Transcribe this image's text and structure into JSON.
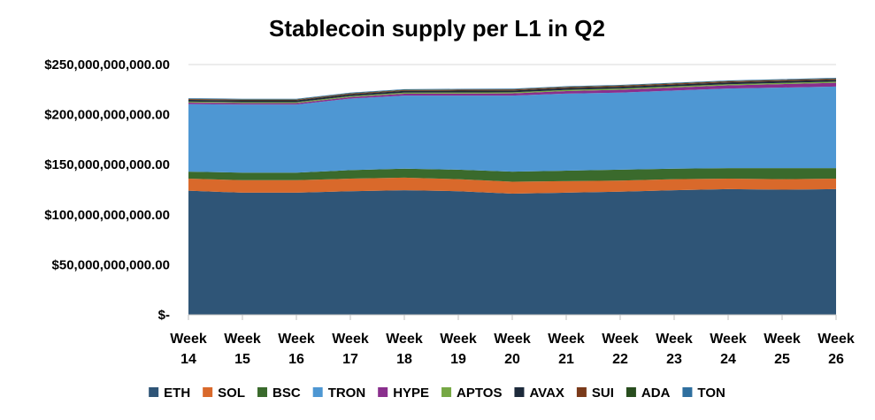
{
  "chart_data": {
    "type": "area",
    "stacked": true,
    "title": "Stablecoin supply per L1 in Q2",
    "xlabel": "",
    "ylabel": "",
    "ylim": [
      0,
      250000000000
    ],
    "y_ticks": [
      0,
      50000000000,
      100000000000,
      150000000000,
      200000000000,
      250000000000
    ],
    "y_tick_labels": [
      "$-",
      "$50,000,000,000.00",
      "$100,000,000,000.00",
      "$150,000,000,000.00",
      "$200,000,000,000.00",
      "$250,000,000,000.00"
    ],
    "categories": [
      [
        "Week",
        "14"
      ],
      [
        "Week",
        "15"
      ],
      [
        "Week",
        "16"
      ],
      [
        "Week",
        "17"
      ],
      [
        "Week",
        "18"
      ],
      [
        "Week",
        "19"
      ],
      [
        "Week",
        "20"
      ],
      [
        "Week",
        "21"
      ],
      [
        "Week",
        "22"
      ],
      [
        "Week",
        "23"
      ],
      [
        "Week",
        "24"
      ],
      [
        "Week",
        "25"
      ],
      [
        "Week",
        "26"
      ]
    ],
    "grid": "horizontal",
    "legend_position": "bottom",
    "series": [
      {
        "name": "ETH",
        "color": "#2f5577",
        "values": [
          124000000000,
          122000000000,
          122000000000,
          123500000000,
          124500000000,
          123500000000,
          121000000000,
          122000000000,
          123000000000,
          124500000000,
          125500000000,
          125000000000,
          125500000000
        ]
      },
      {
        "name": "SOL",
        "color": "#d9692b",
        "values": [
          12000000000,
          12500000000,
          12500000000,
          12500000000,
          12500000000,
          12000000000,
          12000000000,
          11500000000,
          11000000000,
          11000000000,
          10500000000,
          10500000000,
          10500000000
        ]
      },
      {
        "name": "BSC",
        "color": "#3a6a2c",
        "values": [
          7000000000,
          7500000000,
          7500000000,
          8500000000,
          9000000000,
          9500000000,
          10000000000,
          10500000000,
          11000000000,
          10500000000,
          10500000000,
          11000000000,
          10500000000
        ]
      },
      {
        "name": "TRON",
        "color": "#4e97d3",
        "values": [
          67500000000,
          68000000000,
          68000000000,
          71500000000,
          73000000000,
          74000000000,
          76000000000,
          77000000000,
          77000000000,
          78000000000,
          79500000000,
          80500000000,
          81500000000
        ]
      },
      {
        "name": "HYPE",
        "color": "#8a2f8d",
        "values": [
          1500000000,
          1500000000,
          1500000000,
          1500000000,
          1800000000,
          2000000000,
          2200000000,
          2500000000,
          2800000000,
          3000000000,
          3200000000,
          3500000000,
          3800000000
        ]
      },
      {
        "name": "APTOS",
        "color": "#76a844",
        "values": [
          1000000000,
          1000000000,
          1000000000,
          1000000000,
          1100000000,
          1100000000,
          1100000000,
          1200000000,
          1200000000,
          1200000000,
          1200000000,
          1200000000,
          1200000000
        ]
      },
      {
        "name": "AVAX",
        "color": "#1d2a3b",
        "values": [
          1700000000,
          1700000000,
          1700000000,
          1700000000,
          1800000000,
          1800000000,
          1800000000,
          1800000000,
          1800000000,
          1800000000,
          1800000000,
          1800000000,
          1800000000
        ]
      },
      {
        "name": "SUI",
        "color": "#7a3a1a",
        "values": [
          700000000,
          700000000,
          700000000,
          800000000,
          800000000,
          900000000,
          900000000,
          900000000,
          1000000000,
          1000000000,
          1000000000,
          1000000000,
          1000000000
        ]
      },
      {
        "name": "ADA",
        "color": "#284d1e",
        "values": [
          300000000,
          300000000,
          300000000,
          300000000,
          300000000,
          300000000,
          300000000,
          300000000,
          300000000,
          300000000,
          300000000,
          300000000,
          300000000
        ]
      },
      {
        "name": "TON",
        "color": "#2f6f9f",
        "values": [
          600000000,
          600000000,
          600000000,
          600000000,
          600000000,
          600000000,
          600000000,
          600000000,
          600000000,
          600000000,
          600000000,
          600000000,
          600000000
        ]
      }
    ]
  }
}
